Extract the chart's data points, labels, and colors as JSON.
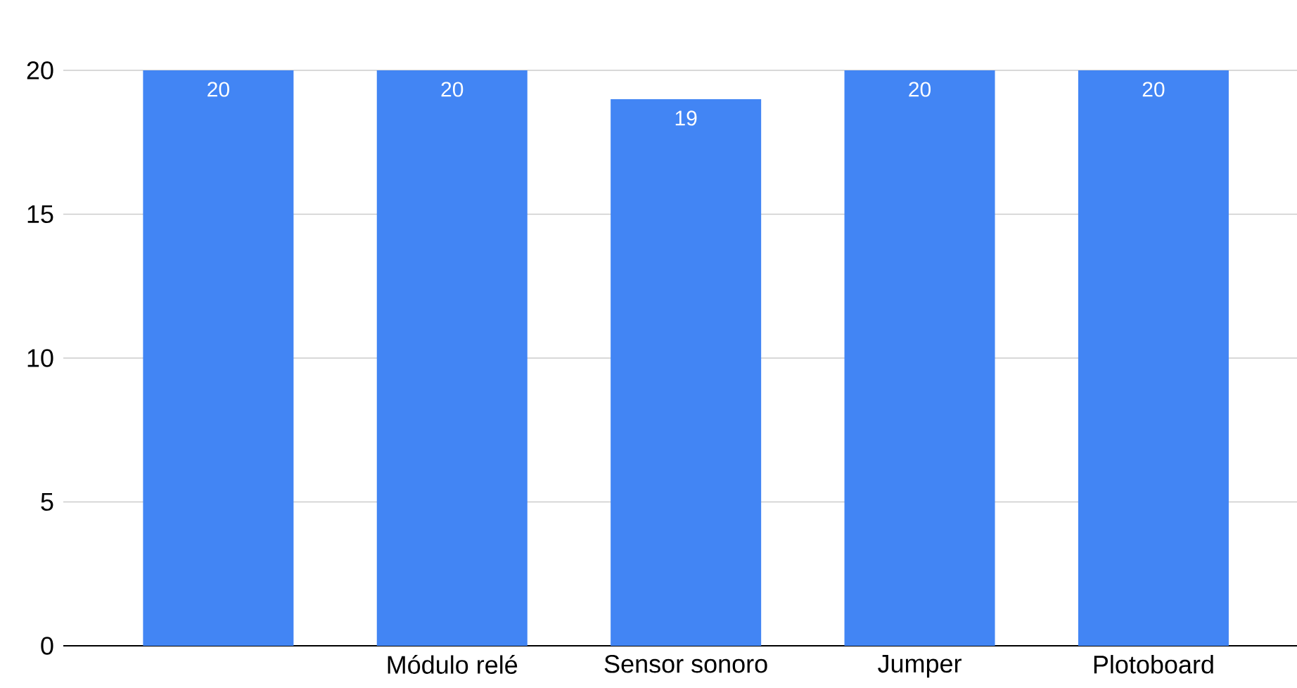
{
  "chart_data": {
    "type": "bar",
    "categories": [
      null,
      "Módulo relé",
      "Sensor sonoro",
      "Jumper",
      "Plotoboard"
    ],
    "values": [
      20,
      20,
      19,
      20,
      20
    ],
    "color": "#4285f4",
    "ylim": [
      0,
      20
    ],
    "yticks": [
      0,
      5,
      10,
      15,
      20
    ],
    "grid": "y",
    "data_labels": true
  }
}
